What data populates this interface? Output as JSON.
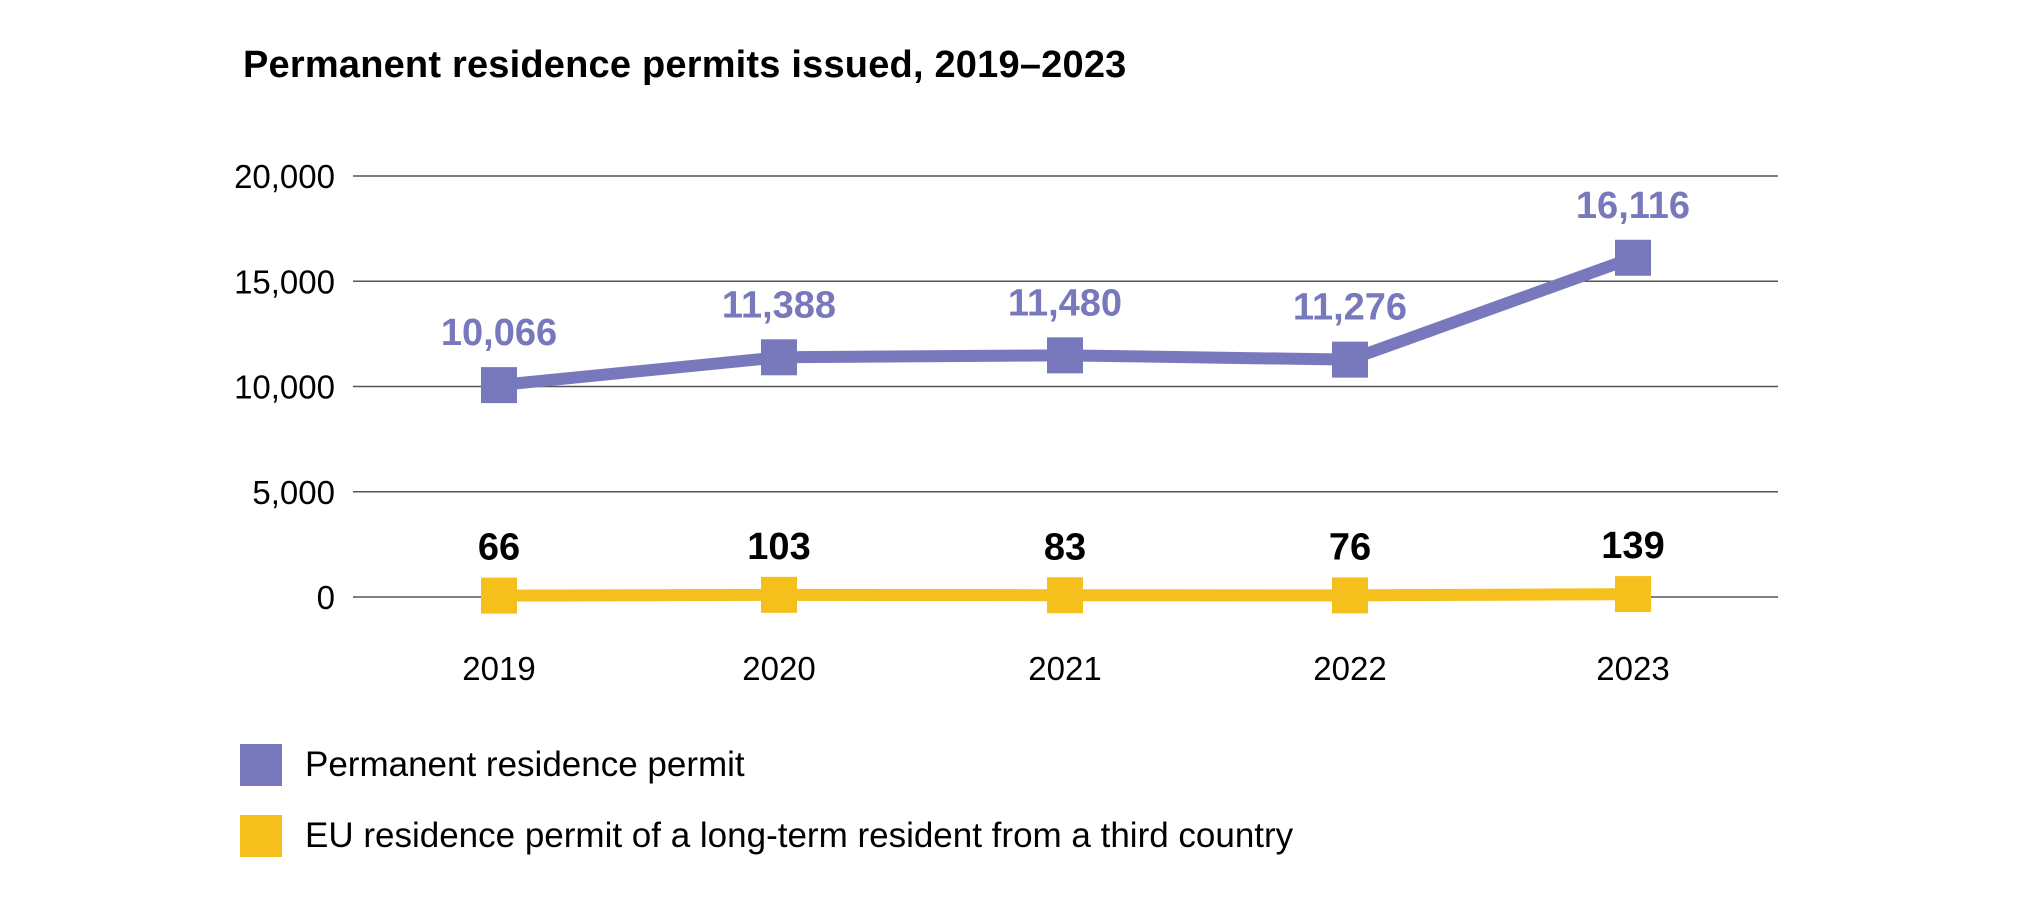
{
  "chart_data": {
    "type": "line",
    "title": "Permanent residence permits issued, 2019–2023",
    "categories": [
      "2019",
      "2020",
      "2021",
      "2022",
      "2023"
    ],
    "ylim": [
      0,
      20000
    ],
    "yticks": [
      0,
      5000,
      10000,
      15000,
      20000
    ],
    "ytick_labels": [
      "0",
      "5,000",
      "10,000",
      "15,000",
      "20,000"
    ],
    "grid": true,
    "legend_position": "bottom-left",
    "series": [
      {
        "name": "Permanent residence permit",
        "color": "#7878bd",
        "values": [
          10066,
          11388,
          11480,
          11276,
          16116
        ],
        "labels": [
          "10,066",
          "11,388",
          "11,480",
          "11,276",
          "16,116"
        ]
      },
      {
        "name": "EU residence permit of a long-term resident from a third country",
        "color": "#f5bf1c",
        "values": [
          66,
          103,
          83,
          76,
          139
        ],
        "labels": [
          "66",
          "103",
          "83",
          "76",
          "139"
        ]
      }
    ]
  },
  "colors": {
    "gridline": "#555555",
    "axis_text": "#000000",
    "value_label_yellow_series": "#000000"
  }
}
